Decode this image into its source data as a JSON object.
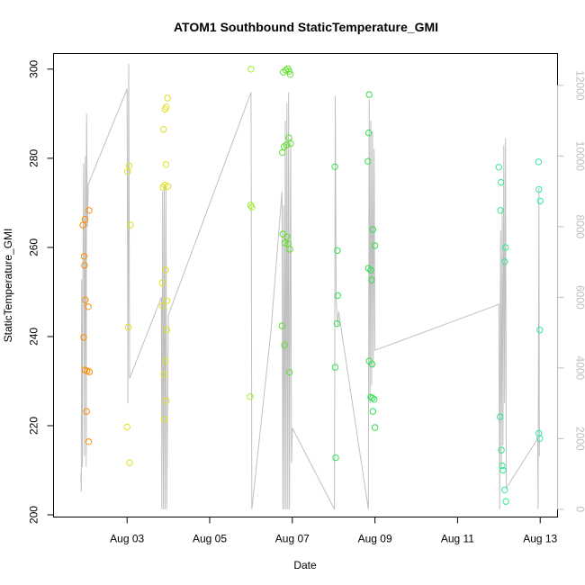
{
  "chart_data": {
    "type": "scatter",
    "title": "ATOM1 Southbound StaticTemperature_GMI",
    "xlabel": "Date",
    "ylabel": "StaticTemperature_GMI",
    "x_ticks": [
      "Aug 03",
      "Aug 05",
      "Aug 07",
      "Aug 09",
      "Aug 11",
      "Aug 13"
    ],
    "x_tick_days": [
      3,
      5,
      7,
      9,
      11,
      13
    ],
    "xlim": [
      1.22,
      13.42
    ],
    "ylim": [
      199.5,
      303.5
    ],
    "y_ticks": [
      200,
      220,
      240,
      260,
      280,
      300
    ],
    "y2lim": [
      -220,
      12900
    ],
    "y2_ticks": [
      0,
      2000,
      4000,
      6000,
      8000,
      10000,
      12000
    ],
    "y2_color": "#bebebe",
    "grid": false,
    "series": [
      {
        "color": "#ff8c00",
        "points": [
          [
            1.93,
            265.0
          ],
          [
            1.96,
            258.0
          ],
          [
            1.97,
            256.0
          ],
          [
            1.98,
            266.3
          ],
          [
            1.99,
            248.2
          ],
          [
            1.95,
            239.8
          ],
          [
            1.98,
            232.5
          ],
          [
            2.03,
            232.3
          ],
          [
            2.02,
            223.2
          ],
          [
            2.08,
            268.3
          ],
          [
            2.06,
            246.7
          ],
          [
            2.09,
            232.1
          ],
          [
            2.07,
            216.4
          ]
        ]
      },
      {
        "color": "#e0e020",
        "points": [
          [
            3.01,
            277.0
          ],
          [
            3.05,
            278.3
          ],
          [
            3.08,
            265.0
          ],
          [
            3.03,
            242.1
          ],
          [
            3.0,
            219.7
          ],
          [
            3.06,
            211.7
          ],
          [
            3.88,
            286.5
          ],
          [
            3.92,
            291.0
          ],
          [
            3.95,
            291.5
          ],
          [
            3.98,
            293.5
          ],
          [
            3.94,
            278.6
          ],
          [
            3.87,
            273.5
          ],
          [
            3.91,
            274.0
          ],
          [
            3.99,
            273.7
          ],
          [
            3.93,
            255.0
          ],
          [
            3.85,
            252.0
          ],
          [
            3.86,
            246.9
          ],
          [
            3.97,
            248.0
          ],
          [
            3.96,
            241.5
          ],
          [
            3.89,
            231.5
          ],
          [
            3.93,
            234.5
          ],
          [
            3.95,
            225.6
          ],
          [
            3.9,
            221.4
          ]
        ]
      },
      {
        "color": "#a0f020",
        "points": [
          [
            6.0,
            300.0
          ],
          [
            5.99,
            269.5
          ],
          [
            6.02,
            269.0
          ],
          [
            5.98,
            226.5
          ]
        ]
      },
      {
        "color": "#60e030",
        "points": [
          [
            6.78,
            299.3
          ],
          [
            6.84,
            299.8
          ],
          [
            6.89,
            300.1
          ],
          [
            6.92,
            299.5
          ],
          [
            6.95,
            298.8
          ],
          [
            6.76,
            281.3
          ],
          [
            6.8,
            282.6
          ],
          [
            6.86,
            283.0
          ],
          [
            6.92,
            284.6
          ],
          [
            6.96,
            283.3
          ],
          [
            6.77,
            263.0
          ],
          [
            6.82,
            261.0
          ],
          [
            6.87,
            262.4
          ],
          [
            6.9,
            260.8
          ],
          [
            6.94,
            259.6
          ],
          [
            6.75,
            242.4
          ],
          [
            6.81,
            238.1
          ],
          [
            6.93,
            232.0
          ]
        ]
      },
      {
        "color": "#30e050",
        "points": [
          [
            8.03,
            278.1
          ],
          [
            8.09,
            259.3
          ],
          [
            8.1,
            249.2
          ],
          [
            8.08,
            242.9
          ],
          [
            8.04,
            233.1
          ],
          [
            8.05,
            212.8
          ],
          [
            8.86,
            294.3
          ],
          [
            8.85,
            285.7
          ],
          [
            8.83,
            279.3
          ],
          [
            8.84,
            255.3
          ],
          [
            8.9,
            254.9
          ],
          [
            8.92,
            252.7
          ],
          [
            8.95,
            264.0
          ],
          [
            9.0,
            260.4
          ],
          [
            8.86,
            234.5
          ],
          [
            8.93,
            233.8
          ],
          [
            8.9,
            226.4
          ],
          [
            8.94,
            226.2
          ],
          [
            8.98,
            225.9
          ],
          [
            8.95,
            223.2
          ],
          [
            9.0,
            219.6
          ]
        ]
      },
      {
        "color": "#30e890",
        "points": [
          [
            12.0,
            278.0
          ],
          [
            12.05,
            274.6
          ],
          [
            12.04,
            268.3
          ],
          [
            12.16,
            260.0
          ],
          [
            12.14,
            256.8
          ],
          [
            12.03,
            222.0
          ],
          [
            12.06,
            214.5
          ],
          [
            12.08,
            211.0
          ],
          [
            12.1,
            210.0
          ],
          [
            12.14,
            205.6
          ],
          [
            12.17,
            203.0
          ]
        ]
      },
      {
        "color": "#30e8b0",
        "points": [
          [
            12.96,
            279.2
          ],
          [
            12.97,
            273.0
          ],
          [
            13.0,
            270.4
          ],
          [
            12.99,
            241.5
          ],
          [
            12.97,
            218.3
          ],
          [
            12.99,
            217.1
          ]
        ]
      }
    ],
    "altitude_series": {
      "axis": "right",
      "color": "#bebebe",
      "points": [
        [
          1.88,
          1000
        ],
        [
          1.89,
          500
        ],
        [
          1.9,
          6500
        ],
        [
          1.92,
          1200
        ],
        [
          1.93,
          7000
        ],
        [
          1.95,
          9800
        ],
        [
          1.97,
          1500
        ],
        [
          1.99,
          10000
        ],
        [
          2.01,
          1200
        ],
        [
          2.02,
          11200
        ],
        [
          2.04,
          8000
        ],
        [
          2.06,
          9200
        ],
        [
          3.0,
          11900
        ],
        [
          3.02,
          3000
        ],
        [
          3.04,
          12600
        ],
        [
          3.06,
          3700
        ],
        [
          3.83,
          6000
        ],
        [
          3.84,
          0
        ],
        [
          3.86,
          9000
        ],
        [
          3.88,
          0
        ],
        [
          3.9,
          9200
        ],
        [
          3.92,
          0
        ],
        [
          3.94,
          9100
        ],
        [
          3.96,
          0
        ],
        [
          4.0,
          5500
        ],
        [
          6.0,
          11800
        ],
        [
          6.01,
          6400
        ],
        [
          6.02,
          0
        ],
        [
          6.48,
          5000
        ],
        [
          6.75,
          9000
        ],
        [
          6.77,
          0
        ],
        [
          6.79,
          8600
        ],
        [
          6.81,
          0
        ],
        [
          6.83,
          11000
        ],
        [
          6.85,
          0
        ],
        [
          6.87,
          11500
        ],
        [
          6.89,
          0
        ],
        [
          6.91,
          11800
        ],
        [
          6.93,
          0
        ],
        [
          6.96,
          10500
        ],
        [
          6.98,
          1300
        ],
        [
          7.0,
          2300
        ],
        [
          8.02,
          0
        ],
        [
          8.04,
          11700
        ],
        [
          8.06,
          6000
        ],
        [
          8.08,
          5500
        ],
        [
          8.1,
          5200
        ],
        [
          8.12,
          5600
        ],
        [
          8.84,
          0
        ],
        [
          8.86,
          11600
        ],
        [
          8.88,
          3000
        ],
        [
          8.9,
          11000
        ],
        [
          8.92,
          3500
        ],
        [
          8.94,
          10700
        ],
        [
          8.96,
          4000
        ],
        [
          8.98,
          10200
        ],
        [
          9.0,
          4500
        ],
        [
          12.0,
          5800
        ],
        [
          12.02,
          0
        ],
        [
          12.04,
          7900
        ],
        [
          12.06,
          1200
        ],
        [
          12.08,
          8500
        ],
        [
          12.1,
          1800
        ],
        [
          12.12,
          10300
        ],
        [
          12.14,
          3000
        ],
        [
          12.16,
          10500
        ],
        [
          12.18,
          600
        ],
        [
          12.94,
          2000
        ],
        [
          12.95,
          0
        ],
        [
          12.97,
          9100
        ],
        [
          12.98,
          1500
        ]
      ]
    }
  }
}
